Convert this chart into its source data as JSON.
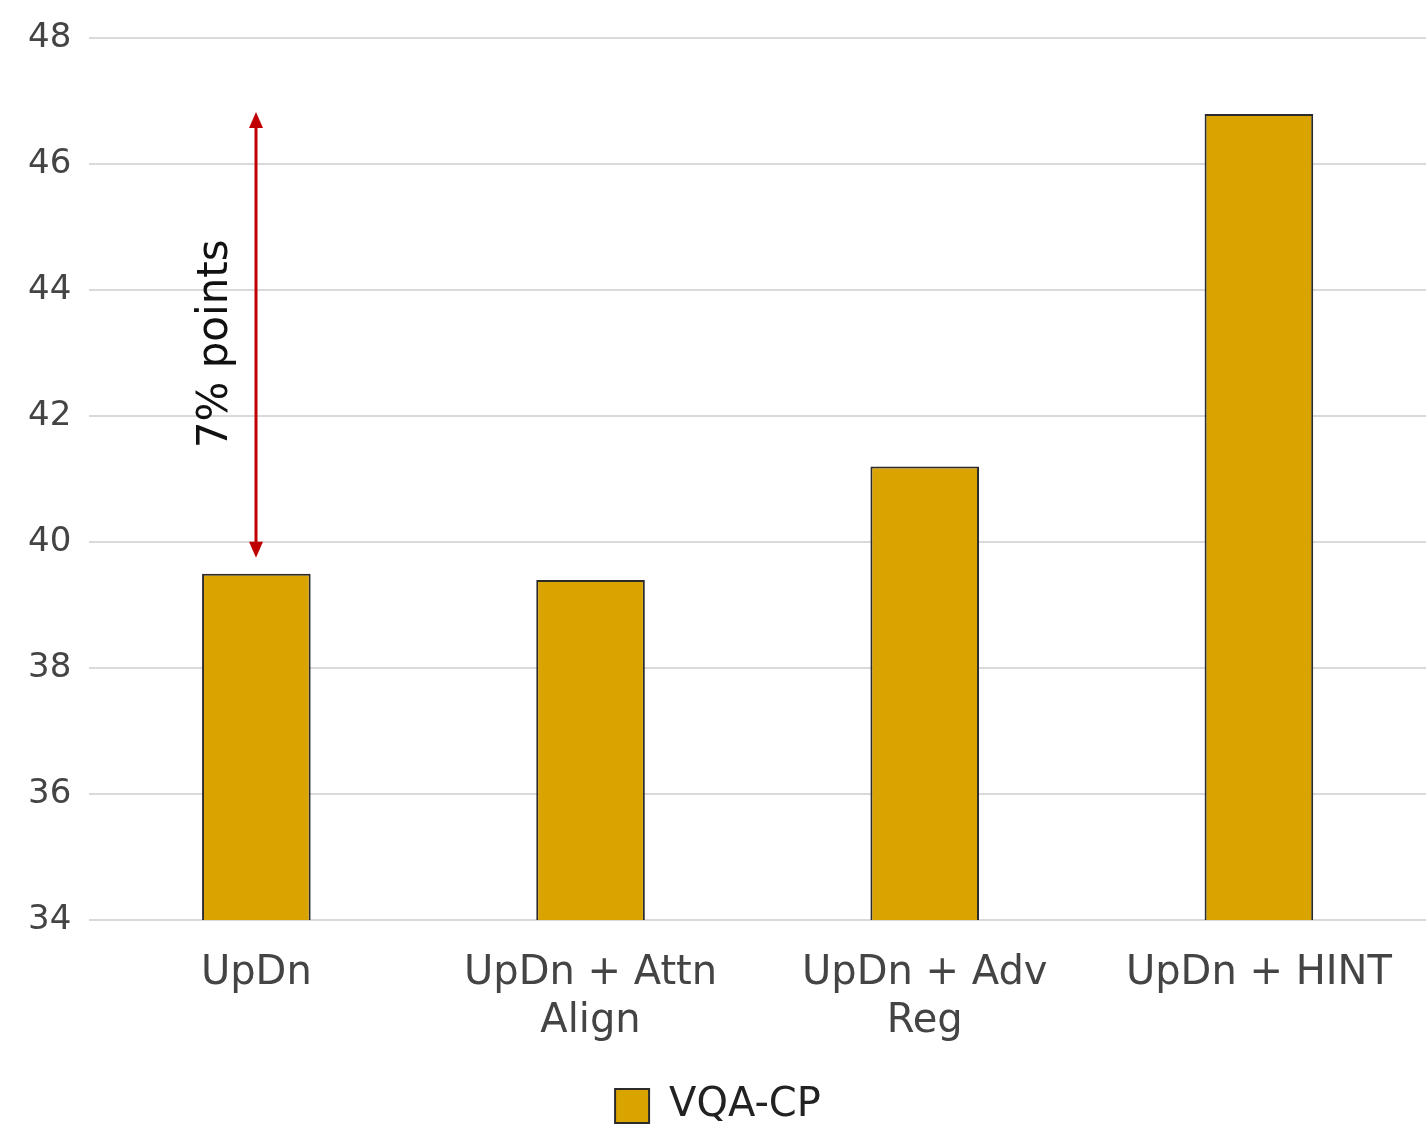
{
  "chart_data": {
    "type": "bar",
    "categories": [
      "UpDn",
      "UpDn + Attn Align",
      "UpDn + Adv Reg",
      "UpDn + HINT"
    ],
    "series": [
      {
        "name": "VQA-CP",
        "color": "#d9a300",
        "values": [
          39.5,
          39.4,
          41.2,
          46.8
        ]
      }
    ],
    "ylim": [
      34,
      48
    ],
    "yticks": [
      34,
      36,
      38,
      40,
      42,
      44,
      46,
      48
    ],
    "grid": "y",
    "legend": "bottom",
    "annotations": [
      "7% points"
    ]
  }
}
